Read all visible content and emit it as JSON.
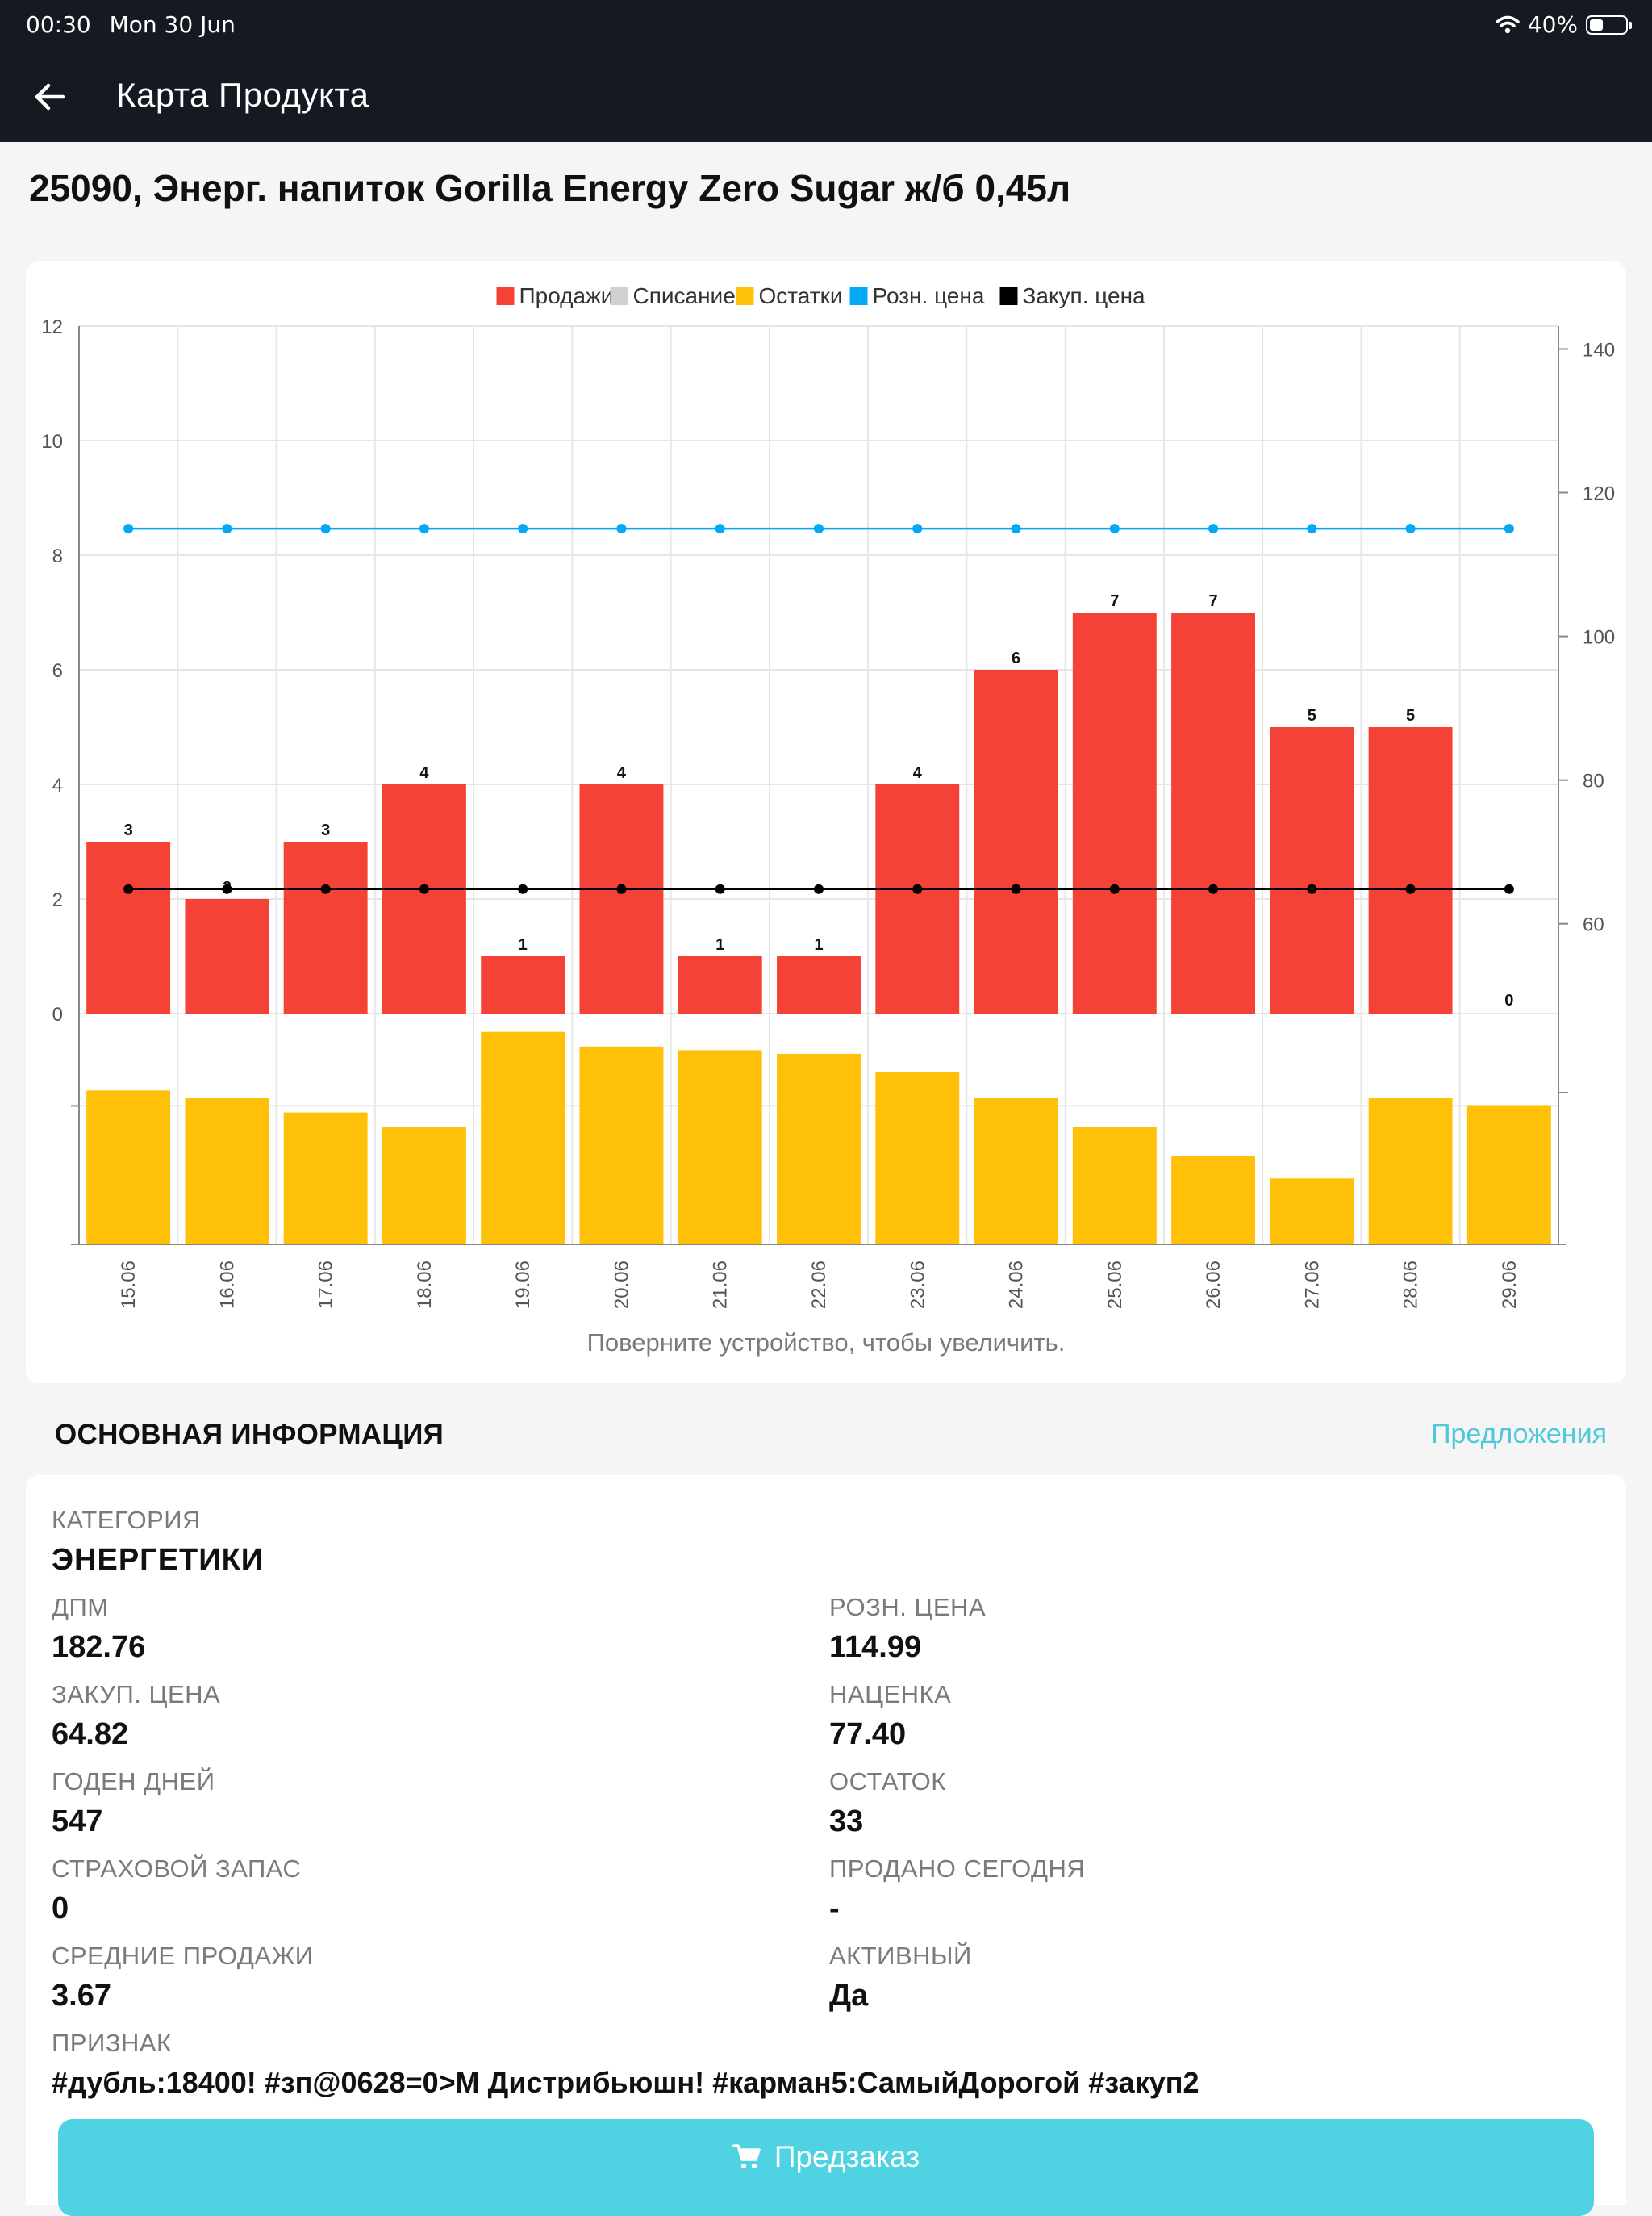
{
  "status_bar": {
    "time": "00:30",
    "date": "Mon 30 Jun",
    "battery": "40%",
    "battery_level": 0.4
  },
  "app_bar": {
    "title": "Карта Продукта",
    "back_icon": "arrow-left-icon"
  },
  "product": {
    "title": "25090, Энерг. напиток Gorilla Energy Zero Sugar ж/б 0,45л"
  },
  "chart_data": {
    "type": "bar",
    "categories": [
      "15.06",
      "16.06",
      "17.06",
      "18.06",
      "19.06",
      "20.06",
      "21.06",
      "22.06",
      "23.06",
      "24.06",
      "25.06",
      "26.06",
      "27.06",
      "28.06",
      "29.06"
    ],
    "legend": [
      "Продажи",
      "Списание",
      "Остатки",
      "Розн. цена",
      "Закуп. цена"
    ],
    "legend_placement": "top-center",
    "series": [
      {
        "name": "Продажи",
        "color": "#f44336",
        "values": [
          3,
          2,
          3,
          4,
          1,
          4,
          1,
          1,
          4,
          6,
          7,
          7,
          5,
          5,
          0
        ],
        "axis": "left"
      },
      {
        "name": "Списание",
        "color": "#d0d0d0",
        "values": [
          0,
          0,
          0,
          0,
          0,
          0,
          0,
          0,
          0,
          0,
          0,
          0,
          0,
          0,
          0
        ]
      },
      {
        "name": "Остатки",
        "color": "#ffc107",
        "values": [
          42,
          40,
          36,
          32,
          58,
          54,
          53,
          52,
          47,
          40,
          32,
          24,
          18,
          40,
          38
        ],
        "axis": "lower"
      },
      {
        "name": "Розн. цена",
        "color": "#03a9f4",
        "values": [
          114.99,
          114.99,
          114.99,
          114.99,
          114.99,
          114.99,
          114.99,
          114.99,
          114.99,
          114.99,
          114.99,
          114.99,
          114.99,
          114.99,
          114.99
        ],
        "axis": "right"
      },
      {
        "name": "Закуп. цена",
        "color": "#000000",
        "values": [
          64.82,
          64.82,
          64.82,
          64.82,
          64.82,
          64.82,
          64.82,
          64.82,
          64.82,
          64.82,
          64.82,
          64.82,
          64.82,
          64.82,
          64.82
        ],
        "axis": "right"
      }
    ],
    "left_axis": {
      "ylim": [
        0,
        12
      ],
      "ticks": [
        0,
        2,
        4,
        6,
        8,
        10,
        12
      ]
    },
    "right_axis": {
      "ylim": [
        47.5,
        140.5
      ],
      "ticks": [
        60,
        80,
        100,
        120,
        140
      ]
    },
    "lower_axis": {
      "ylim": [
        0,
        63
      ]
    },
    "grid": true,
    "hint": "Поверните устройство, чтобы увеличить."
  },
  "section": {
    "title": "ОСНОВНАЯ ИНФОРМАЦИЯ",
    "link": "Предложения"
  },
  "info": {
    "category": {
      "label": "КАТЕГОРИЯ",
      "value": "ЭНЕРГЕТИКИ"
    },
    "dpm": {
      "label": "ДПМ",
      "value": "182.76"
    },
    "retail_price": {
      "label": "РОЗН. ЦЕНА",
      "value": "114.99"
    },
    "purchase_price": {
      "label": "ЗАКУП. ЦЕНА",
      "value": "64.82"
    },
    "markup": {
      "label": "НАЦЕНКА",
      "value": "77.40"
    },
    "shelf_life": {
      "label": "ГОДЕН ДНЕЙ",
      "value": "547"
    },
    "stock": {
      "label": "ОСТАТОК",
      "value": "33"
    },
    "safety_stock": {
      "label": "СТРАХОВОЙ ЗАПАС",
      "value": "0"
    },
    "sold_today": {
      "label": "ПРОДАНО СЕГОДНЯ",
      "value": "-"
    },
    "avg_sales": {
      "label": "СРЕДНИЕ ПРОДАЖИ",
      "value": "3.67"
    },
    "active": {
      "label": "АКТИВНЫЙ",
      "value": "Да"
    },
    "tag": {
      "label": "ПРИЗНАК",
      "value": "#дубль:18400! #зп@0628=0>М Дистрибьюшн! #карман5:СамыйДорогой #закуп2"
    }
  },
  "preorder": {
    "label": "Предзаказ",
    "icon": "cart-icon"
  }
}
